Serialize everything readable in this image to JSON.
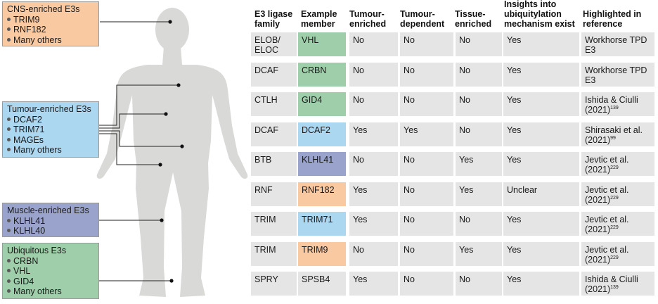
{
  "groups": {
    "cns": {
      "title": "CNS-enriched E3s",
      "items": [
        "TRIM9",
        "RNF182",
        "Many others"
      ],
      "color": "#f9c9a2"
    },
    "tumour": {
      "title": "Tumour-enriched E3s",
      "items": [
        "DCAF2",
        "TRIM71",
        "MAGEs",
        "Many others"
      ],
      "color": "#abd7f1"
    },
    "muscle": {
      "title": "Muscle-enriched E3s",
      "items": [
        "KLHL41",
        "KLHL40"
      ],
      "color": "#9aa3cc"
    },
    "ubiquitous": {
      "title": "Ubiquitous E3s",
      "items": [
        "CRBN",
        "VHL",
        "GID4",
        "Many others"
      ],
      "color": "#9fcfaa"
    }
  },
  "table": {
    "headers": [
      "E3 ligase family",
      "Example member",
      "Tumour-enriched",
      "Tumour-dependent",
      "Tissue-enriched",
      "Insights into ubiquitylation mechanism exist",
      "Highlighted in reference"
    ],
    "rows": [
      {
        "family": "ELOB/ ELOC",
        "member": "VHL",
        "member_color": "#9fcfaa",
        "tumour_enriched": "No",
        "tumour_dependent": "No",
        "tissue_enriched": "No",
        "insights": "Yes",
        "reference": "Workhorse TPD E3",
        "ref_sup": ""
      },
      {
        "family": "DCAF",
        "member": "CRBN",
        "member_color": "#9fcfaa",
        "tumour_enriched": "No",
        "tumour_dependent": "No",
        "tissue_enriched": "No",
        "insights": "Yes",
        "reference": "Workhorse TPD E3",
        "ref_sup": ""
      },
      {
        "family": "CTLH",
        "member": "GID4",
        "member_color": "#9fcfaa",
        "tumour_enriched": "No",
        "tumour_dependent": "No",
        "tissue_enriched": "No",
        "insights": "Yes",
        "reference": "Ishida & Ciulli (2021)",
        "ref_sup": "139"
      },
      {
        "family": "DCAF",
        "member": "DCAF2",
        "member_color": "#abd7f1",
        "tumour_enriched": "Yes",
        "tumour_dependent": "Yes",
        "tissue_enriched": "No",
        "insights": "Yes",
        "reference": "Shirasaki et al. (2021)",
        "ref_sup": "99"
      },
      {
        "family": "BTB",
        "member": "KLHL41",
        "member_color": "#9aa3cc",
        "tumour_enriched": "No",
        "tumour_dependent": "No",
        "tissue_enriched": "Yes",
        "insights": "Yes",
        "reference": "Jevtic et al. (2021)",
        "ref_sup": "229"
      },
      {
        "family": "RNF",
        "member": "RNF182",
        "member_color": "#f9c9a2",
        "tumour_enriched": "Yes",
        "tumour_dependent": "No",
        "tissue_enriched": "Yes",
        "insights": "Unclear",
        "reference": "Jevtic et al. (2021)",
        "ref_sup": "229"
      },
      {
        "family": "TRIM",
        "member": "TRIM71",
        "member_color": "#abd7f1",
        "tumour_enriched": "Yes",
        "tumour_dependent": "No",
        "tissue_enriched": "No",
        "insights": "Yes",
        "reference": "Jevtic et al. (2021)",
        "ref_sup": "229"
      },
      {
        "family": "TRIM",
        "member": "TRIM9",
        "member_color": "#f9c9a2",
        "tumour_enriched": "No",
        "tumour_dependent": "No",
        "tissue_enriched": "Yes",
        "insights": "Yes",
        "reference": "Jevtic et al. (2021)",
        "ref_sup": "229"
      },
      {
        "family": "SPRY",
        "member": "SPSB4",
        "member_color": "",
        "tumour_enriched": "Yes",
        "tumour_dependent": "No",
        "tissue_enriched": "No",
        "insights": "Yes",
        "reference": "Ishida & Ciulli (2021)",
        "ref_sup": "139"
      }
    ]
  },
  "colors": {
    "body": "#d9d9d7",
    "cell": "#e5e5e5",
    "line": "#222222"
  }
}
